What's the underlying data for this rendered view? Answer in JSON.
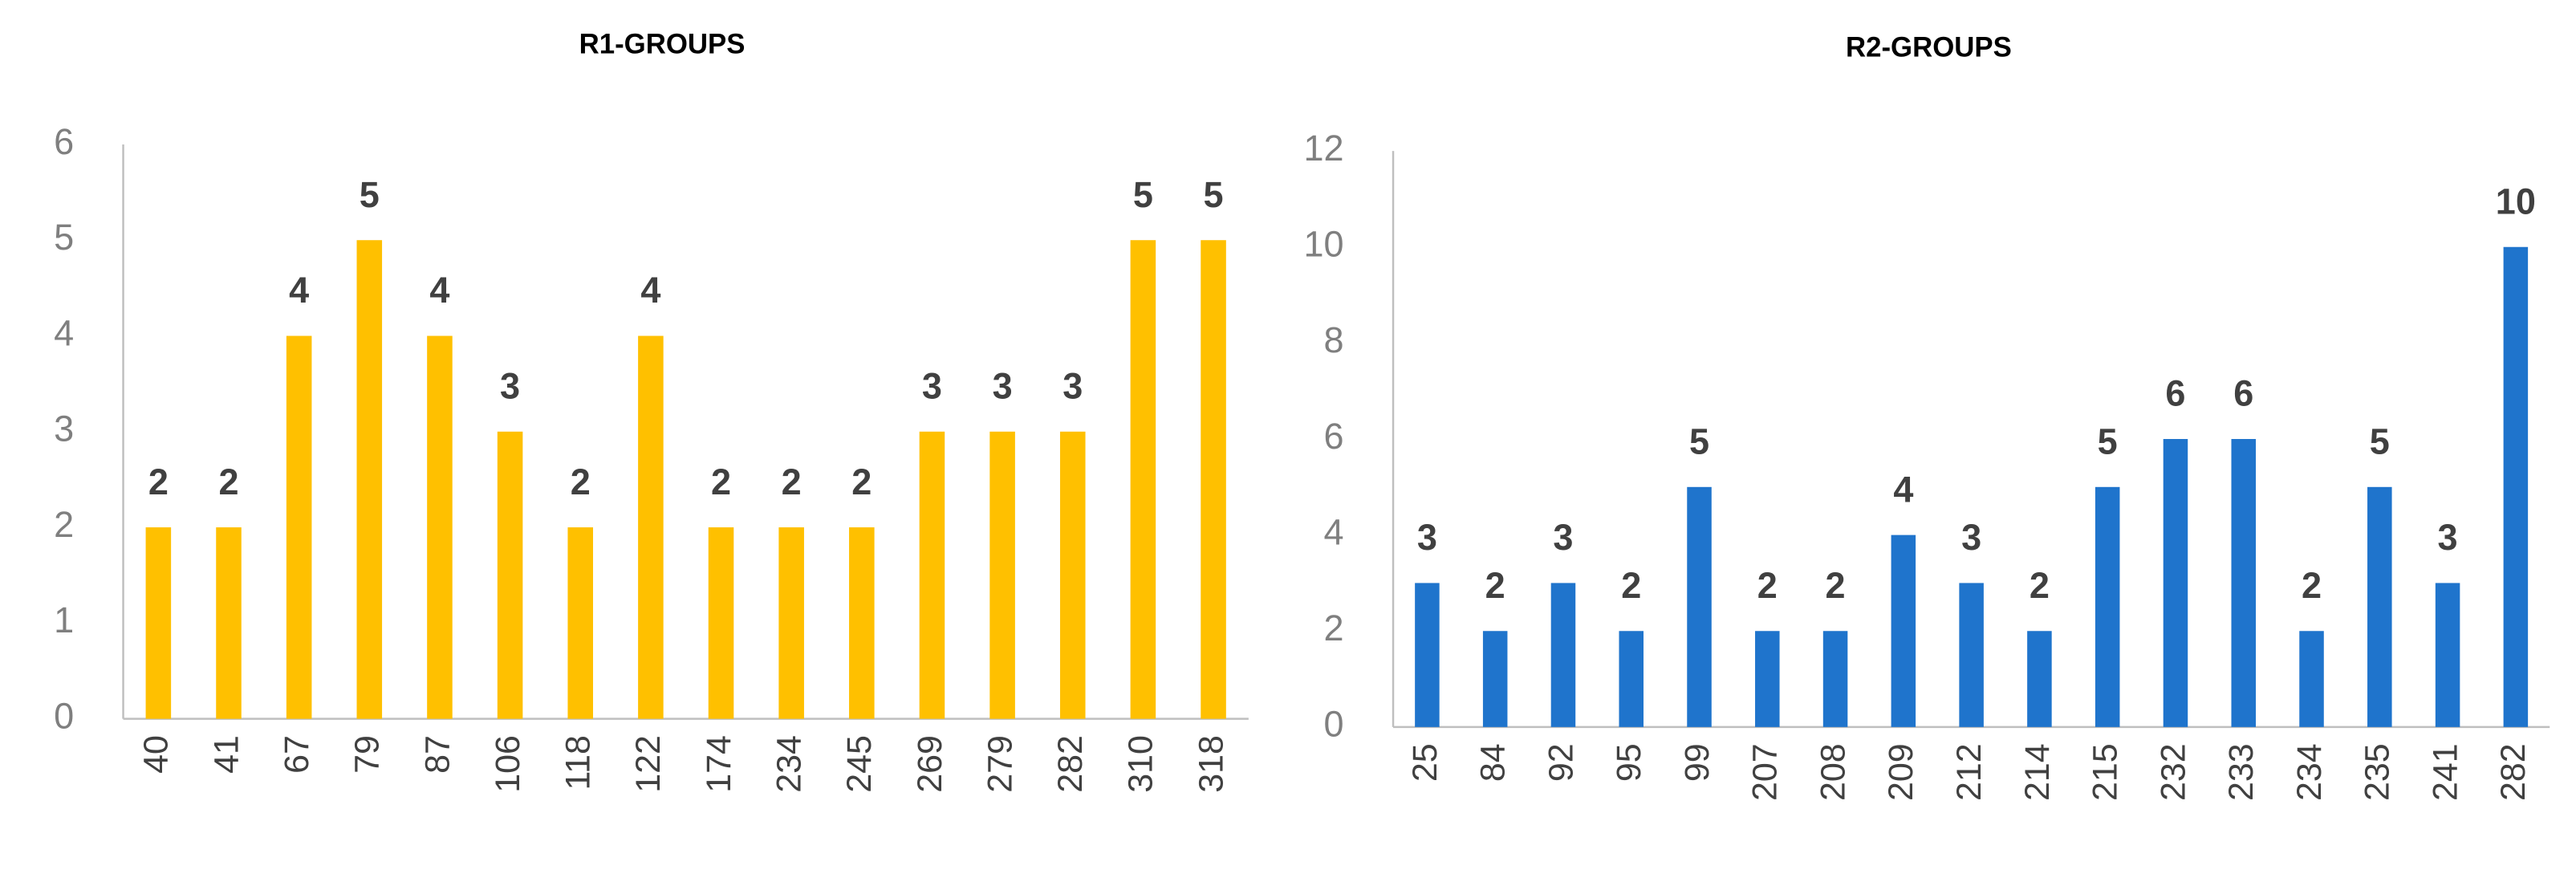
{
  "chart_data": [
    {
      "type": "bar",
      "title": "R1-GROUPS",
      "categories": [
        "40",
        "41",
        "67",
        "79",
        "87",
        "106",
        "118",
        "122",
        "174",
        "234",
        "245",
        "269",
        "279",
        "282",
        "310",
        "318"
      ],
      "values": [
        2,
        2,
        4,
        5,
        4,
        3,
        2,
        4,
        2,
        2,
        2,
        3,
        3,
        3,
        5,
        5
      ],
      "color": "#ffc000",
      "ylim": [
        0,
        6
      ],
      "yticks": [
        0,
        1,
        2,
        3,
        4,
        5,
        6
      ],
      "grid": false
    },
    {
      "type": "bar",
      "title": "R2-GROUPS",
      "categories": [
        "25",
        "84",
        "92",
        "95",
        "99",
        "207",
        "208",
        "209",
        "212",
        "214",
        "215",
        "232",
        "233",
        "234",
        "235",
        "241",
        "282"
      ],
      "values": [
        3,
        2,
        3,
        2,
        5,
        2,
        2,
        4,
        3,
        2,
        5,
        6,
        6,
        2,
        5,
        3,
        10
      ],
      "color": "#1f74cc",
      "ylim": [
        0,
        12
      ],
      "yticks": [
        0,
        2,
        4,
        6,
        8,
        10,
        12
      ],
      "grid": false
    }
  ]
}
